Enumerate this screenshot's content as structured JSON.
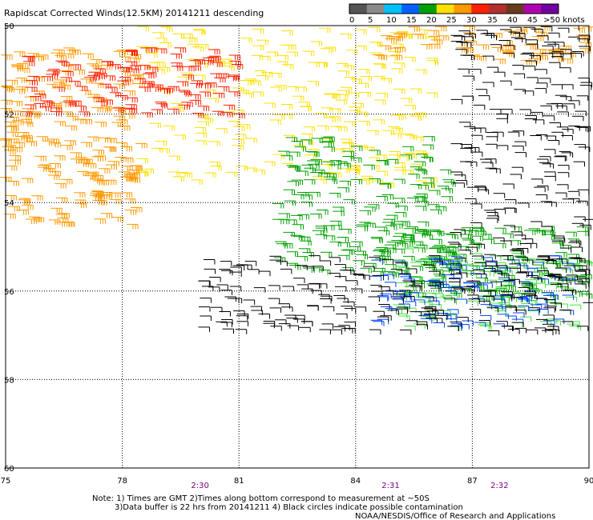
{
  "title": "Rapidscat Corrected Winds(12.5KM) 20141211 descending",
  "legend": {
    "labels": [
      "0",
      "5",
      "10",
      "15",
      "20",
      "25",
      "30",
      "35",
      "40",
      "45",
      ">50 knots"
    ],
    "colors": [
      "#555555",
      "#8a8a8a",
      "#00c0ff",
      "#0060ff",
      "#00a000",
      "#ffe000",
      "#ff9900",
      "#ff2000",
      "#b03030",
      "#6a3a1e",
      "#b000b0",
      "#7000a0"
    ]
  },
  "chart_data": {
    "type": "scatter",
    "title": "Rapidscat Corrected Winds(12.5KM) 20141211 descending",
    "xlabel": "",
    "ylabel": "",
    "x_ticks": [
      75,
      78,
      81,
      84,
      87,
      90
    ],
    "y_ticks": [
      "50",
      "52",
      "54",
      "56",
      "58",
      "60"
    ],
    "xlim": [
      75,
      90
    ],
    "ylim": [
      50,
      60
    ],
    "y_inverted": true,
    "grid": true,
    "time_labels": [
      {
        "x": 80,
        "label": "2:30"
      },
      {
        "x": 84.9,
        "label": "2:31"
      },
      {
        "x": 87.7,
        "label": "2:32"
      }
    ],
    "wind_regions": [
      {
        "name": "yellow band north",
        "color": "#ffe000",
        "speed_knots": 22,
        "lon": [
          78.5,
          86
        ],
        "lat": [
          50,
          53.6
        ]
      },
      {
        "name": "orange north-east",
        "color": "#ff9900",
        "speed_knots": 27,
        "lon": [
          84.5,
          90
        ],
        "lat": [
          50,
          50.8
        ]
      },
      {
        "name": "orange west",
        "color": "#ff9900",
        "speed_knots": 28,
        "lon": [
          75,
          78.5
        ],
        "lat": [
          50.5,
          54.5
        ]
      },
      {
        "name": "red core",
        "color": "#ff2000",
        "speed_knots": 32,
        "lon": [
          75.5,
          81
        ],
        "lat": [
          50.5,
          52
        ]
      },
      {
        "name": "green central",
        "color": "#00a000",
        "speed_knots": 17,
        "lon": [
          82,
          86.5
        ],
        "lat": [
          52.5,
          55.6
        ]
      },
      {
        "name": "green south",
        "color": "#00a000",
        "speed_knots": 16,
        "lon": [
          84.5,
          90
        ],
        "lat": [
          54.5,
          56.2
        ]
      },
      {
        "name": "light green south",
        "color": "#40e040",
        "speed_knots": 14,
        "lon": [
          85,
          90
        ],
        "lat": [
          55,
          56.8
        ]
      },
      {
        "name": "blue south",
        "color": "#0040ff",
        "speed_knots": 12,
        "lon": [
          84.5,
          89.5
        ],
        "lat": [
          55.2,
          56.8
        ]
      },
      {
        "name": "black east",
        "color": "#000000",
        "speed_knots": 10,
        "lon": [
          86.5,
          90
        ],
        "lat": [
          50,
          55.8
        ]
      },
      {
        "name": "black southern swath",
        "color": "#000000",
        "speed_knots": 10,
        "lon": [
          80,
          90
        ],
        "lat": [
          55.2,
          56.9
        ]
      }
    ]
  },
  "notes": [
    "Note: 1) Times are GMT 2)Times along bottom correspond to measurement at ~50S",
    "3)Data buffer is 22 hrs from 20141211 4) Black circles indicate possible contamination"
  ],
  "credit": "NOAA/NESDIS/Office of Research and Applications"
}
